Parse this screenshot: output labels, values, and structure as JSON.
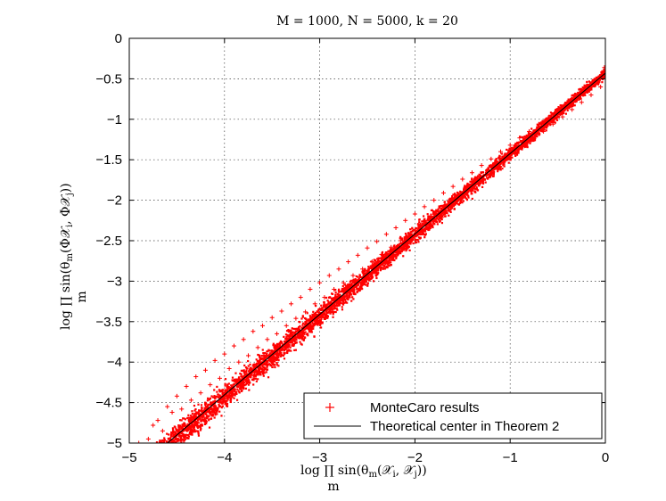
{
  "chart_data": {
    "type": "scatter",
    "title": "M = 1000, N = 5000, k = 20",
    "xlabel": "log ∏ sin(θm(𝒳i, 𝒳j))",
    "xlabel_main": "log ∏ sin(θ",
    "xlabel_sub_m": "m",
    "xlabel_rest": "(𝒳",
    "xlabel_i": "i",
    "xlabel_comma": ", 𝒳",
    "xlabel_j": "j",
    "xlabel_close": "))",
    "xlabel_under": "m",
    "ylabel": "log ∏ sin(θm(Φ𝒳i, Φ𝒳j))",
    "ylabel_main": "log ∏ sin(θ",
    "ylabel_sub_m": "m",
    "ylabel_rest": "(Φ𝒳",
    "ylabel_i": "i",
    "ylabel_comma": ", Φ𝒳",
    "ylabel_j": "j",
    "ylabel_close": "))",
    "ylabel_under": "m",
    "xlim": [
      -5,
      0
    ],
    "ylim": [
      -5,
      0
    ],
    "xticks": [
      -5,
      -4,
      -3,
      -2,
      -1,
      0
    ],
    "xtick_labels": [
      "−5",
      "−4",
      "−3",
      "−2",
      "−1",
      "0"
    ],
    "yticks": [
      0,
      -0.5,
      -1,
      -1.5,
      -2,
      -2.5,
      -3,
      -3.5,
      -4,
      -4.5,
      -5
    ],
    "ytick_labels": [
      "0",
      "−0.5",
      "−1",
      "−1.5",
      "−2",
      "−2.5",
      "−3",
      "−3.5",
      "−4",
      "−4.5",
      "−5"
    ],
    "grid": true,
    "legend_position": "bottom-right",
    "series": [
      {
        "name": "MonteCaro results",
        "kind": "scatter",
        "marker": "+",
        "color": "#ff0000",
        "points": [
          [
            -4.9,
            -5.0
          ],
          [
            -4.8,
            -4.95
          ],
          [
            -4.75,
            -4.78
          ],
          [
            -4.7,
            -4.72
          ],
          [
            -4.65,
            -4.85
          ],
          [
            -4.6,
            -4.55
          ],
          [
            -4.55,
            -4.62
          ],
          [
            -4.5,
            -4.42
          ],
          [
            -4.45,
            -4.58
          ],
          [
            -4.4,
            -4.3
          ],
          [
            -4.35,
            -4.47
          ],
          [
            -4.3,
            -4.18
          ],
          [
            -4.25,
            -4.38
          ],
          [
            -4.2,
            -4.1
          ],
          [
            -4.15,
            -4.28
          ],
          [
            -4.1,
            -3.98
          ],
          [
            -4.05,
            -4.2
          ],
          [
            -4.0,
            -3.9
          ],
          [
            -3.95,
            -4.08
          ],
          [
            -3.9,
            -3.8
          ],
          [
            -3.85,
            -4.0
          ],
          [
            -3.8,
            -3.72
          ],
          [
            -3.75,
            -3.92
          ],
          [
            -3.7,
            -3.62
          ],
          [
            -3.65,
            -3.82
          ],
          [
            -3.6,
            -3.55
          ],
          [
            -3.55,
            -3.72
          ],
          [
            -3.5,
            -3.45
          ],
          [
            -3.45,
            -3.65
          ],
          [
            -3.4,
            -3.37
          ],
          [
            -3.35,
            -3.55
          ],
          [
            -3.3,
            -3.28
          ],
          [
            -3.25,
            -3.46
          ],
          [
            -3.2,
            -3.2
          ],
          [
            -3.15,
            -3.38
          ],
          [
            -3.1,
            -3.1
          ],
          [
            -3.05,
            -3.28
          ],
          [
            -3.0,
            -3.02
          ],
          [
            -2.95,
            -3.2
          ],
          [
            -2.9,
            -2.93
          ],
          [
            -2.85,
            -3.1
          ],
          [
            -2.8,
            -2.85
          ],
          [
            -2.75,
            -3.02
          ],
          [
            -2.7,
            -2.76
          ],
          [
            -2.65,
            -2.93
          ],
          [
            -2.6,
            -2.68
          ],
          [
            -2.55,
            -2.85
          ],
          [
            -2.5,
            -2.59
          ],
          [
            -2.45,
            -2.76
          ],
          [
            -2.4,
            -2.51
          ],
          [
            -2.35,
            -2.67
          ],
          [
            -2.3,
            -2.42
          ],
          [
            -2.25,
            -2.58
          ],
          [
            -2.2,
            -2.34
          ],
          [
            -2.15,
            -2.5
          ],
          [
            -2.1,
            -2.25
          ],
          [
            -2.05,
            -2.41
          ],
          [
            -2.0,
            -2.17
          ],
          [
            -1.95,
            -2.32
          ],
          [
            -1.9,
            -2.08
          ],
          [
            -1.85,
            -2.23
          ],
          [
            -1.8,
            -2.0
          ],
          [
            -1.75,
            -2.14
          ],
          [
            -1.7,
            -1.91
          ],
          [
            -1.65,
            -2.05
          ],
          [
            -1.6,
            -1.83
          ],
          [
            -1.55,
            -1.96
          ],
          [
            -1.5,
            -1.74
          ],
          [
            -1.45,
            -1.87
          ],
          [
            -1.4,
            -1.66
          ],
          [
            -1.35,
            -1.78
          ],
          [
            -1.3,
            -1.57
          ],
          [
            -1.25,
            -1.69
          ],
          [
            -1.2,
            -1.49
          ],
          [
            -1.15,
            -1.6
          ],
          [
            -1.1,
            -1.4
          ],
          [
            -1.05,
            -1.51
          ],
          [
            -1.0,
            -1.32
          ],
          [
            -0.95,
            -1.42
          ],
          [
            -0.9,
            -1.23
          ],
          [
            -0.85,
            -1.33
          ],
          [
            -0.8,
            -1.15
          ],
          [
            -0.75,
            -1.24
          ],
          [
            -0.7,
            -1.06
          ],
          [
            -0.65,
            -1.15
          ],
          [
            -0.6,
            -0.98
          ],
          [
            -0.55,
            -1.06
          ],
          [
            -0.5,
            -0.89
          ],
          [
            -0.45,
            -0.97
          ],
          [
            -0.4,
            -0.81
          ],
          [
            -0.35,
            -0.88
          ],
          [
            -0.3,
            -0.72
          ],
          [
            -0.25,
            -0.79
          ],
          [
            -0.2,
            -0.64
          ],
          [
            -0.15,
            -0.7
          ],
          [
            -0.1,
            -0.55
          ],
          [
            -0.05,
            -0.6
          ],
          [
            -0.02,
            -0.4
          ],
          [
            -0.01,
            -0.36
          ],
          [
            -0.04,
            -0.45
          ]
        ]
      },
      {
        "name": "Theoretical center in Theorem 2",
        "kind": "line",
        "color": "#000000",
        "x": [
          -4.6,
          0
        ],
        "y": [
          -5.0,
          -0.43
        ]
      }
    ]
  }
}
